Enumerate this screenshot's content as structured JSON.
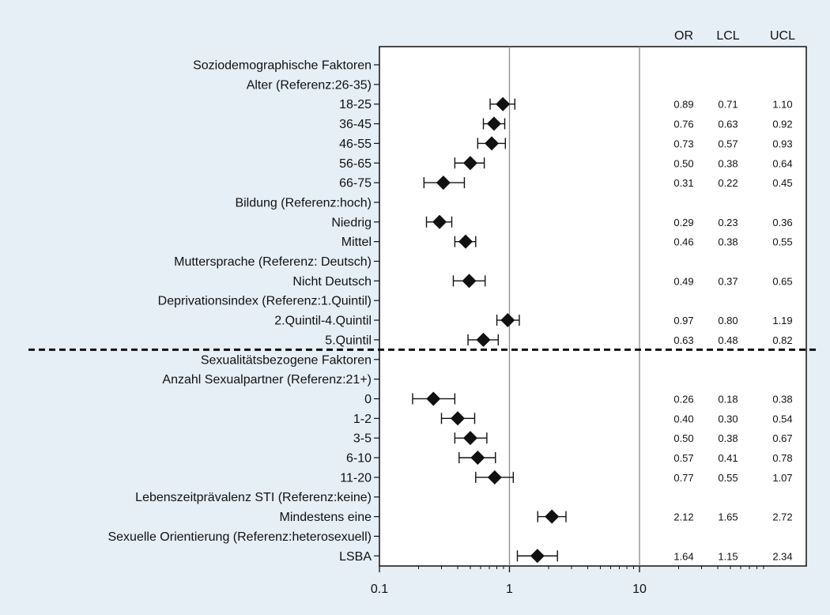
{
  "chart_data": {
    "type": "forest",
    "x_scale": "log",
    "xlim": [
      0.1,
      100
    ],
    "x_ticks": [
      "0.1",
      "1",
      "10"
    ],
    "reference_lines": [
      1,
      10
    ],
    "columns": [
      "OR",
      "LCL",
      "UCL"
    ],
    "colors": {
      "background": "#e6eef6",
      "plot_area": "#ffffff",
      "ink": "#111111",
      "reference_line": "#8a8a8a"
    },
    "rows": [
      {
        "label": "Soziodemographische Faktoren",
        "or": null,
        "lcl": null,
        "ucl": null,
        "or_text": "",
        "lcl_text": "",
        "ucl_text": ""
      },
      {
        "label": "Alter (Referenz:26-35)",
        "or": null,
        "lcl": null,
        "ucl": null,
        "or_text": "",
        "lcl_text": "",
        "ucl_text": ""
      },
      {
        "label": "18-25",
        "or": 0.89,
        "lcl": 0.71,
        "ucl": 1.1,
        "or_text": "0.89",
        "lcl_text": "0.71",
        "ucl_text": "1.10"
      },
      {
        "label": "36-45",
        "or": 0.76,
        "lcl": 0.63,
        "ucl": 0.92,
        "or_text": "0.76",
        "lcl_text": "0.63",
        "ucl_text": "0.92"
      },
      {
        "label": "46-55",
        "or": 0.73,
        "lcl": 0.57,
        "ucl": 0.93,
        "or_text": "0.73",
        "lcl_text": "0.57",
        "ucl_text": "0.93"
      },
      {
        "label": "56-65",
        "or": 0.5,
        "lcl": 0.38,
        "ucl": 0.64,
        "or_text": "0.50",
        "lcl_text": "0.38",
        "ucl_text": "0.64"
      },
      {
        "label": "66-75",
        "or": 0.31,
        "lcl": 0.22,
        "ucl": 0.45,
        "or_text": "0.31",
        "lcl_text": "0.22",
        "ucl_text": "0.45"
      },
      {
        "label": "Bildung (Referenz:hoch)",
        "or": null,
        "lcl": null,
        "ucl": null,
        "or_text": "",
        "lcl_text": "",
        "ucl_text": ""
      },
      {
        "label": "Niedrig",
        "or": 0.29,
        "lcl": 0.23,
        "ucl": 0.36,
        "or_text": "0.29",
        "lcl_text": "0.23",
        "ucl_text": "0.36"
      },
      {
        "label": "Mittel",
        "or": 0.46,
        "lcl": 0.38,
        "ucl": 0.55,
        "or_text": "0.46",
        "lcl_text": "0.38",
        "ucl_text": "0.55"
      },
      {
        "label": "Muttersprache (Referenz: Deutsch)",
        "or": null,
        "lcl": null,
        "ucl": null,
        "or_text": "",
        "lcl_text": "",
        "ucl_text": ""
      },
      {
        "label": "Nicht Deutsch",
        "or": 0.49,
        "lcl": 0.37,
        "ucl": 0.65,
        "or_text": "0.49",
        "lcl_text": "0.37",
        "ucl_text": "0.65"
      },
      {
        "label": "Deprivationsindex (Referenz:1.Quintil)",
        "or": null,
        "lcl": null,
        "ucl": null,
        "or_text": "",
        "lcl_text": "",
        "ucl_text": ""
      },
      {
        "label": "2.Quintil-4.Quintil",
        "or": 0.97,
        "lcl": 0.8,
        "ucl": 1.19,
        "or_text": "0.97",
        "lcl_text": "0.80",
        "ucl_text": "1.19"
      },
      {
        "label": "5.Quintil",
        "or": 0.63,
        "lcl": 0.48,
        "ucl": 0.82,
        "or_text": "0.63",
        "lcl_text": "0.48",
        "ucl_text": "0.82"
      },
      {
        "label": "Sexualitätsbezogene Faktoren",
        "or": null,
        "lcl": null,
        "ucl": null,
        "or_text": "",
        "lcl_text": "",
        "ucl_text": ""
      },
      {
        "label": "Anzahl Sexualpartner (Referenz:21+)",
        "or": null,
        "lcl": null,
        "ucl": null,
        "or_text": "",
        "lcl_text": "",
        "ucl_text": ""
      },
      {
        "label": "0",
        "or": 0.26,
        "lcl": 0.18,
        "ucl": 0.38,
        "or_text": "0.26",
        "lcl_text": "0.18",
        "ucl_text": "0.38"
      },
      {
        "label": "1-2",
        "or": 0.4,
        "lcl": 0.3,
        "ucl": 0.54,
        "or_text": "0.40",
        "lcl_text": "0.30",
        "ucl_text": "0.54"
      },
      {
        "label": "3-5",
        "or": 0.5,
        "lcl": 0.38,
        "ucl": 0.67,
        "or_text": "0.50",
        "lcl_text": "0.38",
        "ucl_text": "0.67"
      },
      {
        "label": "6-10",
        "or": 0.57,
        "lcl": 0.41,
        "ucl": 0.78,
        "or_text": "0.57",
        "lcl_text": "0.41",
        "ucl_text": "0.78"
      },
      {
        "label": "11-20",
        "or": 0.77,
        "lcl": 0.55,
        "ucl": 1.07,
        "or_text": "0.77",
        "lcl_text": "0.55",
        "ucl_text": "1.07"
      },
      {
        "label": "Lebenszeitprävalenz STI (Referenz:keine)",
        "or": null,
        "lcl": null,
        "ucl": null,
        "or_text": "",
        "lcl_text": "",
        "ucl_text": ""
      },
      {
        "label": "Mindestens eine",
        "or": 2.12,
        "lcl": 1.65,
        "ucl": 2.72,
        "or_text": "2.12",
        "lcl_text": "1.65",
        "ucl_text": "2.72"
      },
      {
        "label": "Sexuelle Orientierung (Referenz:heterosexuell)",
        "or": null,
        "lcl": null,
        "ucl": null,
        "or_text": "",
        "lcl_text": "",
        "ucl_text": ""
      },
      {
        "label": "LSBA",
        "or": 1.64,
        "lcl": 1.15,
        "ucl": 2.34,
        "or_text": "1.64",
        "lcl_text": "1.15",
        "ucl_text": "2.34"
      }
    ],
    "separator_between": [
      "5.Quintil",
      "Sexualitätsbezogene Faktoren"
    ]
  }
}
